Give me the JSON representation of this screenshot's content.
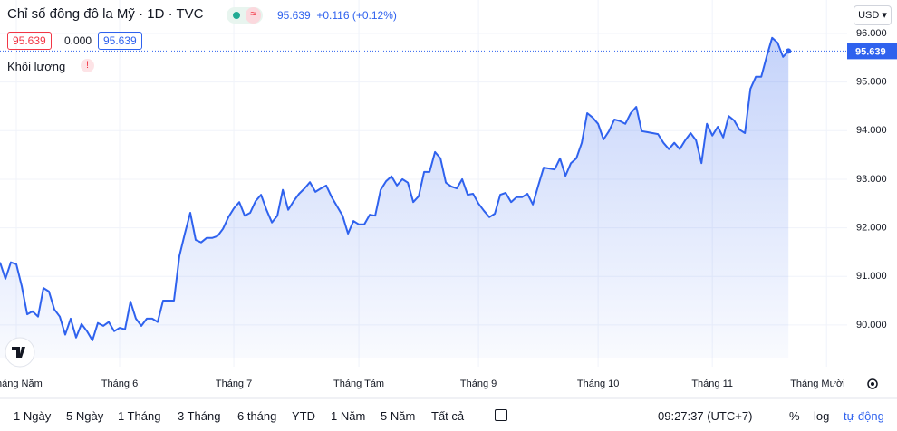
{
  "chart_data": {
    "type": "area",
    "title": "Chỉ số đông đô la Mỹ",
    "interval": "1D",
    "source": "TVC",
    "header_price": "95.639",
    "header_change": "+0.116 (+0.12%)",
    "legend_values": [
      "95.639",
      "0.000",
      "95.639"
    ],
    "indicator": "Khối lượng",
    "currency": "USD",
    "price_label": "95.639",
    "color": "#2f62ee",
    "fill": "#c9d6fb",
    "x": [
      0,
      1,
      2,
      3,
      4,
      5,
      6,
      7,
      8,
      9,
      10,
      11,
      12,
      13,
      14,
      15,
      16,
      17,
      18,
      19,
      20,
      21,
      22,
      23,
      24,
      25,
      26,
      27,
      28,
      29,
      30,
      31,
      32,
      33,
      34,
      35,
      36,
      37,
      38,
      39,
      40,
      41,
      42,
      43,
      44,
      45,
      46,
      47,
      48,
      49,
      50,
      51,
      52,
      53,
      54,
      55,
      56,
      57,
      58,
      59,
      60,
      61,
      62,
      63,
      64,
      65,
      66,
      67,
      68,
      69,
      70,
      71,
      72,
      73,
      74,
      75,
      76,
      77,
      78,
      79,
      80,
      81,
      82,
      83,
      84,
      85,
      86,
      87,
      88,
      89,
      90,
      91,
      92,
      93,
      94,
      95,
      96,
      97,
      98,
      99,
      100,
      101,
      102,
      103,
      104,
      105,
      106,
      107,
      108,
      109,
      110,
      111,
      112,
      113,
      114,
      115,
      116,
      117,
      118,
      119,
      120,
      121,
      122,
      123,
      124,
      125,
      126,
      127,
      128,
      129,
      130,
      131,
      132,
      133,
      134,
      135,
      136,
      137,
      138,
      139,
      140,
      141,
      142,
      143,
      144,
      145
    ],
    "values": [
      91.29,
      90.95,
      91.29,
      91.25,
      90.8,
      90.22,
      90.28,
      90.17,
      90.76,
      90.69,
      90.32,
      90.17,
      89.8,
      90.13,
      89.74,
      90.02,
      89.87,
      89.68,
      90.04,
      89.98,
      90.06,
      89.87,
      89.94,
      89.91,
      90.48,
      90.13,
      89.98,
      90.13,
      90.13,
      90.06,
      90.5,
      90.5,
      90.5,
      91.42,
      91.88,
      92.31,
      91.75,
      91.7,
      91.79,
      91.79,
      91.83,
      91.98,
      92.22,
      92.4,
      92.53,
      92.25,
      92.31,
      92.55,
      92.68,
      92.37,
      92.11,
      92.25,
      92.78,
      92.37,
      92.55,
      92.7,
      92.81,
      92.94,
      92.74,
      92.81,
      92.87,
      92.63,
      92.44,
      92.25,
      91.88,
      92.14,
      92.07,
      92.07,
      92.27,
      92.25,
      92.78,
      92.96,
      93.06,
      92.87,
      93.0,
      92.93,
      92.53,
      92.65,
      93.15,
      93.15,
      93.56,
      93.43,
      92.93,
      92.85,
      92.81,
      93.0,
      92.68,
      92.7,
      92.5,
      92.35,
      92.22,
      92.29,
      92.68,
      92.72,
      92.53,
      92.63,
      92.63,
      92.7,
      92.48,
      92.87,
      93.24,
      93.22,
      93.2,
      93.43,
      93.07,
      93.33,
      93.43,
      93.75,
      94.36,
      94.27,
      94.14,
      93.82,
      93.99,
      94.23,
      94.2,
      94.14,
      94.36,
      94.49,
      93.99,
      93.97,
      93.95,
      93.93,
      93.75,
      93.62,
      93.75,
      93.62,
      93.8,
      93.95,
      93.8,
      93.33,
      94.14,
      93.9,
      94.08,
      93.86,
      94.3,
      94.21,
      94.02,
      93.95,
      94.86,
      95.11,
      95.11,
      95.53,
      95.91,
      95.81,
      95.52,
      95.639
    ],
    "xlim": [
      0,
      155.8
    ],
    "xticks": [
      {
        "value": 3,
        "label": "Tháng Năm"
      },
      {
        "value": 22,
        "label": "Tháng 6"
      },
      {
        "value": 43,
        "label": "Tháng 7"
      },
      {
        "value": 66,
        "label": "Tháng Tám"
      },
      {
        "value": 88,
        "label": "Tháng 9"
      },
      {
        "value": 110,
        "label": "Tháng 10"
      },
      {
        "value": 131,
        "label": "Tháng 11"
      },
      {
        "value": 152,
        "label": "Tháng Mười Hai"
      }
    ],
    "ylim": [
      89.14,
      96.69
    ],
    "yticks": [
      {
        "value": 90,
        "label": "90.000"
      },
      {
        "value": 91,
        "label": "91.000"
      },
      {
        "value": 92,
        "label": "92.000"
      },
      {
        "value": 93,
        "label": "93.000"
      },
      {
        "value": 94,
        "label": "94.000"
      },
      {
        "value": 95,
        "label": "95.000"
      },
      {
        "value": 96,
        "label": "96.000"
      }
    ],
    "grid": true
  },
  "toolbar": {
    "ranges": [
      "1 Ngày",
      "5 Ngày",
      "1 Tháng",
      "3 Tháng",
      "6 tháng",
      "YTD",
      "1 Năm",
      "5 Năm",
      "Tất cả"
    ],
    "time": "09:27:37 (UTC+7)",
    "percent": "%",
    "log": "log",
    "auto": "tự động"
  }
}
